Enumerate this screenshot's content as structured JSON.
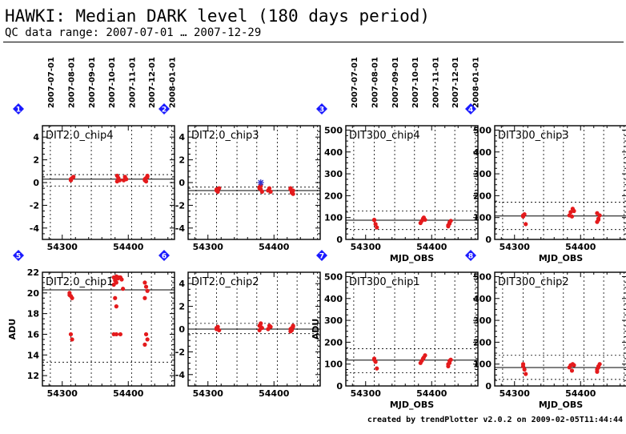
{
  "header": {
    "title": "HAWKI: Median DARK level (180 days period)",
    "subtitle": "QC data range: 2007-07-01 … 2007-12-29"
  },
  "footer": "created by trendPlotter v2.0.2 on 2009-02-05T11:44:44",
  "colors": {
    "points": "#e41a1c",
    "marker_badge": "#1a1aff",
    "outlier": "#3333cc"
  },
  "date_ticks": [
    "2007-07-01",
    "2007-08-01",
    "2007-09-01",
    "2007-10-01",
    "2007-11-01",
    "2007-12-01",
    "2008-01-01"
  ],
  "chart_data": [
    {
      "id": "1",
      "type": "scatter",
      "title": "DIT2.0_chip4",
      "xlabel": "",
      "ylabel": "",
      "xlim": [
        54270,
        54470
      ],
      "ylim": [
        -5,
        5
      ],
      "yticks": [
        -4,
        -2,
        0,
        2,
        4
      ],
      "xticks": [
        54300,
        54400
      ],
      "median": 0.3,
      "band": [
        -0.3,
        0.7
      ],
      "groups": [
        {
          "x": 54315,
          "y": [
            0.2,
            0.4,
            0.5,
            0.3
          ]
        },
        {
          "x": 54385,
          "y": [
            0.1,
            0.4,
            0.2,
            0.6,
            0.3
          ]
        },
        {
          "x": 54395,
          "y": [
            0.2,
            0.5,
            0.3
          ]
        },
        {
          "x": 54427,
          "y": [
            0.2,
            0.4,
            0.6,
            0.3,
            0.1,
            0.5
          ]
        }
      ],
      "outliers": []
    },
    {
      "id": "2",
      "type": "scatter",
      "title": "DIT2.0_chip3",
      "xlabel": "",
      "ylabel": "",
      "xlim": [
        54270,
        54470
      ],
      "ylim": [
        -5,
        5
      ],
      "yticks": [
        -4,
        -2,
        0,
        2,
        4
      ],
      "xticks": [
        54300,
        54400
      ],
      "median": -0.7,
      "band": [
        -1.0,
        -0.4
      ],
      "groups": [
        {
          "x": 54315,
          "y": [
            -0.6,
            -0.8,
            -0.5,
            -0.7
          ]
        },
        {
          "x": 54380,
          "y": [
            -0.4,
            -0.6,
            -0.8,
            -0.5,
            -0.3
          ]
        },
        {
          "x": 54393,
          "y": [
            -0.7,
            -0.5,
            -0.8
          ]
        },
        {
          "x": 54427,
          "y": [
            -0.6,
            -0.9,
            -0.7,
            -0.5,
            -0.8,
            -1.0
          ]
        }
      ],
      "outliers": [
        {
          "x": 54380,
          "y": 0.0
        }
      ]
    },
    {
      "id": "3",
      "type": "scatter",
      "title": "DIT300_chip4",
      "xlabel": "MJD_OBS",
      "ylabel": "",
      "xlim": [
        54270,
        54470
      ],
      "ylim": [
        0,
        520
      ],
      "yticks": [
        0,
        100,
        200,
        300,
        400,
        500
      ],
      "xticks": [
        54300,
        54400
      ],
      "median": 88,
      "band": [
        45,
        130
      ],
      "groups": [
        {
          "x": 54315,
          "y": [
            88,
            70,
            55,
            90
          ]
        },
        {
          "x": 54385,
          "y": [
            75,
            85,
            95
          ]
        },
        {
          "x": 54390,
          "y": [
            100,
            90
          ]
        },
        {
          "x": 54427,
          "y": [
            60,
            72,
            85,
            65,
            78
          ]
        }
      ],
      "outliers": []
    },
    {
      "id": "4",
      "type": "scatter",
      "title": "DIT300_chip3",
      "xlabel": "MJD_OBS",
      "ylabel": "",
      "xlim": [
        54270,
        54470
      ],
      "ylim": [
        0,
        520
      ],
      "yticks": [
        0,
        100,
        200,
        300,
        400,
        500
      ],
      "xticks": [
        54300,
        54400
      ],
      "median": 107,
      "band": [
        45,
        170
      ],
      "groups": [
        {
          "x": 54315,
          "y": [
            105,
            115,
            70,
            110
          ]
        },
        {
          "x": 54385,
          "y": [
            110,
            125,
            105
          ]
        },
        {
          "x": 54390,
          "y": [
            140,
            130
          ]
        },
        {
          "x": 54427,
          "y": [
            80,
            95,
            110,
            120,
            90
          ]
        }
      ],
      "outliers": []
    },
    {
      "id": "5",
      "type": "scatter",
      "title": "DIT2.0_chip1",
      "xlabel": "",
      "ylabel": "ADU",
      "xlim": [
        54270,
        54470
      ],
      "ylim": [
        11,
        22
      ],
      "yticks": [
        12,
        14,
        16,
        18,
        20,
        22
      ],
      "xticks": [
        54300,
        54400
      ],
      "median": 20.3,
      "band": [
        13.3,
        22.5
      ],
      "groups": [
        {
          "x": 54313,
          "y": [
            20.0,
            19.7,
            19.5,
            19.8,
            16.0,
            15.5
          ]
        },
        {
          "x": 54380,
          "y": [
            21.5,
            21.2,
            21.0,
            20.8,
            19.5,
            18.7,
            16.0
          ]
        },
        {
          "x": 54384,
          "y": [
            21.6,
            21.4,
            21.5,
            16.0
          ]
        },
        {
          "x": 54390,
          "y": [
            21.5,
            21.3,
            20.4,
            16.0
          ]
        },
        {
          "x": 54427,
          "y": [
            21.0,
            20.6,
            20.2,
            19.5,
            16.0,
            15.5,
            15.0
          ]
        }
      ],
      "outliers": []
    },
    {
      "id": "6",
      "type": "scatter",
      "title": "DIT2.0_chip2",
      "xlabel": "",
      "ylabel": "",
      "xlim": [
        54270,
        54470
      ],
      "ylim": [
        -5,
        5
      ],
      "yticks": [
        -4,
        -2,
        0,
        2,
        4
      ],
      "xticks": [
        54300,
        54400
      ],
      "median": 0.0,
      "band": [
        -0.4,
        0.5
      ],
      "groups": [
        {
          "x": 54315,
          "y": [
            0.1,
            0.2,
            -0.1,
            0.0
          ]
        },
        {
          "x": 54380,
          "y": [
            0.3,
            0.5,
            0.1,
            -0.1,
            0.2
          ]
        },
        {
          "x": 54393,
          "y": [
            0.0,
            0.3,
            0.2
          ]
        },
        {
          "x": 54427,
          "y": [
            -0.2,
            0.1,
            0.3,
            0.0,
            -0.1,
            0.2
          ]
        }
      ],
      "outliers": []
    },
    {
      "id": "7",
      "type": "scatter",
      "title": "DIT300_chip1",
      "xlabel": "MJD_OBS",
      "ylabel": "ADU",
      "xlim": [
        54270,
        54470
      ],
      "ylim": [
        0,
        520
      ],
      "yticks": [
        0,
        100,
        200,
        300,
        400,
        500
      ],
      "xticks": [
        54300,
        54400
      ],
      "median": 118,
      "band": [
        60,
        170
      ],
      "groups": [
        {
          "x": 54315,
          "y": [
            120,
            110,
            80,
            125
          ]
        },
        {
          "x": 54385,
          "y": [
            105,
            115,
            125
          ]
        },
        {
          "x": 54390,
          "y": [
            130,
            140
          ]
        },
        {
          "x": 54427,
          "y": [
            90,
            105,
            120,
            100,
            115
          ]
        }
      ],
      "outliers": []
    },
    {
      "id": "8",
      "type": "scatter",
      "title": "DIT300_chip2",
      "xlabel": "MJD_OBS",
      "ylabel": "",
      "xlim": [
        54270,
        54470
      ],
      "ylim": [
        0,
        520
      ],
      "yticks": [
        0,
        100,
        200,
        300,
        400,
        500
      ],
      "xticks": [
        54300,
        54400
      ],
      "median": 84,
      "band": [
        30,
        140
      ],
      "groups": [
        {
          "x": 54315,
          "y": [
            90,
            75,
            55,
            100
          ]
        },
        {
          "x": 54385,
          "y": [
            85,
            95,
            70
          ]
        },
        {
          "x": 54390,
          "y": [
            100,
            95
          ]
        },
        {
          "x": 54427,
          "y": [
            65,
            85,
            100,
            75,
            90
          ]
        }
      ],
      "outliers": []
    }
  ]
}
